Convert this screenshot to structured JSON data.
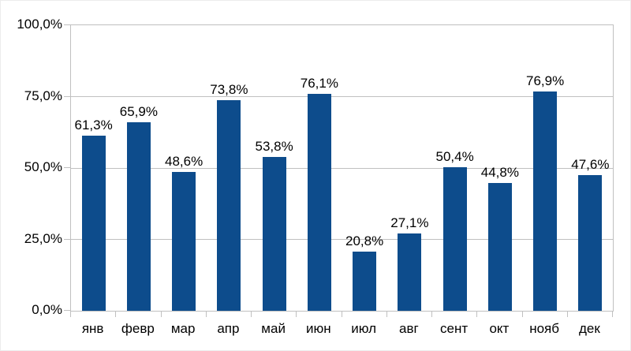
{
  "chart_data": {
    "type": "bar",
    "categories": [
      "янв",
      "февр",
      "мар",
      "апр",
      "май",
      "июн",
      "июл",
      "авг",
      "сент",
      "окт",
      "нояб",
      "дек"
    ],
    "values": [
      61.3,
      65.9,
      48.6,
      73.8,
      53.8,
      76.1,
      20.8,
      27.1,
      50.4,
      44.8,
      76.9,
      47.6
    ],
    "value_labels": [
      "61,3%",
      "65,9%",
      "48,6%",
      "73,8%",
      "53,8%",
      "76,1%",
      "20,8%",
      "27,1%",
      "50,4%",
      "44,8%",
      "76,9%",
      "47,6%"
    ],
    "xlabel": "",
    "ylabel": "",
    "ylim": [
      0,
      100
    ],
    "y_tick_values": [
      0,
      25,
      50,
      75,
      100
    ],
    "y_tick_labels": [
      "0,0%",
      "25,0%",
      "50,0%",
      "75,0%",
      "100,0%"
    ],
    "grid": true,
    "legend": false,
    "colors": {
      "bar": "#0d4c8c",
      "grid": "#c0c0c0",
      "text": "#000000",
      "background": "#ffffff"
    }
  }
}
